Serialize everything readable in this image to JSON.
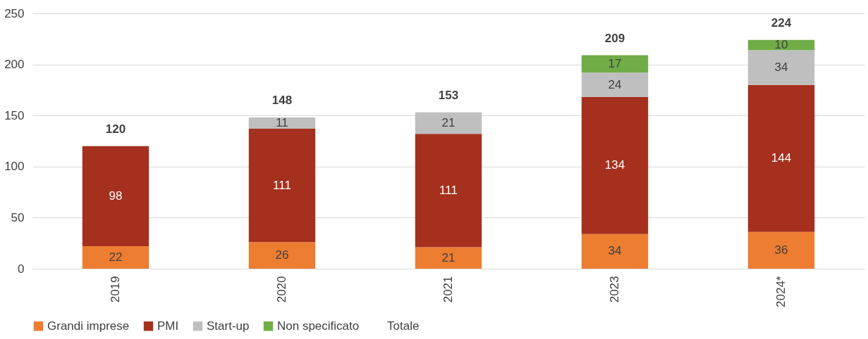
{
  "chart_data": {
    "type": "bar",
    "stacked": true,
    "categories": [
      "2019",
      "2020",
      "2021",
      "2023",
      "2024*"
    ],
    "series": [
      {
        "name": "Grandi imprese",
        "color": "#ed7d31",
        "values": [
          22,
          26,
          21,
          34,
          36
        ]
      },
      {
        "name": "PMI",
        "color": "#a5301e",
        "values": [
          98,
          111,
          111,
          134,
          144
        ]
      },
      {
        "name": "Start-up",
        "color": "#bfbfbf",
        "values": [
          null,
          11,
          21,
          24,
          34
        ]
      },
      {
        "name": "Non specificato",
        "color": "#70ad47",
        "values": [
          null,
          null,
          null,
          17,
          10
        ]
      },
      {
        "name": "Totale",
        "color": null,
        "values": [
          null,
          null,
          null,
          null,
          null
        ]
      }
    ],
    "totals": [
      "120",
      "148",
      "153",
      "209",
      "224"
    ],
    "data_labels": true,
    "ylim": [
      0,
      250
    ],
    "yticks": [
      0,
      50,
      100,
      150,
      200,
      250
    ],
    "grid": "y",
    "legend": "bottom"
  }
}
